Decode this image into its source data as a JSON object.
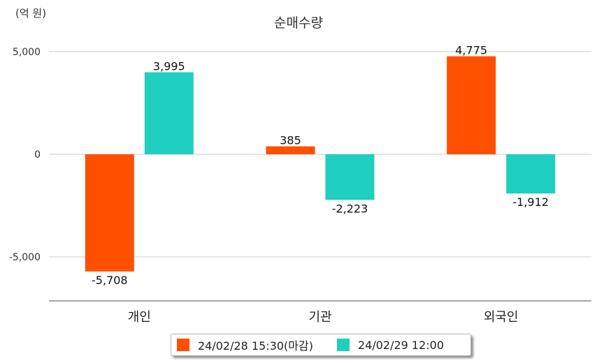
{
  "chart_data": {
    "type": "bar",
    "title": "순매수량",
    "unit": "(억 원)",
    "categories": [
      "개인",
      "기관",
      "외국인"
    ],
    "series": [
      {
        "name": "24/02/28 15:30(마감)",
        "color": "#ff5000",
        "values": [
          -5708,
          385,
          4775
        ],
        "labels": [
          "-5,708",
          "385",
          "4,775"
        ]
      },
      {
        "name": "24/02/29 12:00",
        "color": "#1fcfbf",
        "values": [
          3995,
          -2223,
          -1912
        ],
        "labels": [
          "3,995",
          "-2,223",
          "-1,912"
        ]
      }
    ],
    "y_ticks": [
      5000,
      0,
      -5000
    ],
    "y_tick_labels": [
      "5,000",
      "0",
      "-5,000"
    ],
    "ylim": [
      -7200,
      5900
    ],
    "grid": true,
    "legend_position": "bottom"
  }
}
